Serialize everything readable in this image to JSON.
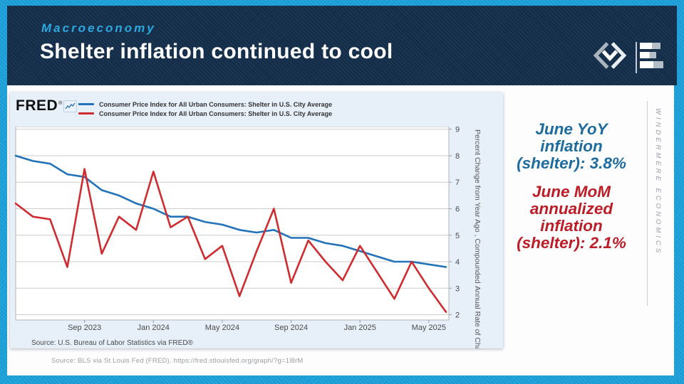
{
  "slide": {
    "eyebrow": "Macroeconomy",
    "title": "Shelter inflation continued to cool",
    "footer_source": "Source: BLS via St Louis Fed (FRED). https://fred.stlouisfed.org/graph/?g=1l8rM",
    "brand_vertical": "WINDERMERE ECONOMICS"
  },
  "colors": {
    "frame_blue": "#1ba4dd",
    "header_navy": "#16314f",
    "eyebrow_blue": "#2da7dd",
    "yoy_line_blue": "#2172b8",
    "mom_line_red": "#d02b2e",
    "callout_blue": "#1e6b9e",
    "callout_red": "#bd1c26"
  },
  "fred_chart": {
    "logo": "FRED",
    "logo_reg": "®",
    "legend": [
      {
        "label": "Consumer Price Index for All Urban Consumers: Shelter in U.S. City Average",
        "color": "#2172b8"
      },
      {
        "label": "Consumer Price Index for All Urban Consumers: Shelter in U.S. City Average",
        "color": "#d02b2e"
      }
    ],
    "y_axis_title_line1": "Percent Change from Year Ago , Compounded",
    "y_axis_title_line2": "Annual Rate of Change",
    "inner_source": "Source: U.S. Bureau of Labor Statistics via FRED®"
  },
  "callouts": {
    "yoy": {
      "lines": [
        "June YoY",
        "inflation",
        "(shelter): 3.8%"
      ],
      "color": "#1e6b9e"
    },
    "mom": {
      "lines": [
        "June MoM",
        "annualized",
        "inflation",
        "(shelter): 2.1%"
      ],
      "color": "#bd1c26"
    }
  },
  "chart_data": {
    "type": "line",
    "title": "Consumer Price Index for All Urban Consumers: Shelter in U.S. City Average",
    "ylabel": "Percent Change from Year Ago , Compounded Annual Rate of Change",
    "x": [
      "May 2023",
      "Jun 2023",
      "Jul 2023",
      "Aug 2023",
      "Sep 2023",
      "Oct 2023",
      "Nov 2023",
      "Dec 2023",
      "Jan 2024",
      "Feb 2024",
      "Mar 2024",
      "Apr 2024",
      "May 2024",
      "Jun 2024",
      "Jul 2024",
      "Aug 2024",
      "Sep 2024",
      "Oct 2024",
      "Nov 2024",
      "Dec 2024",
      "Jan 2025",
      "Feb 2025",
      "Mar 2025",
      "Apr 2025",
      "May 2025",
      "Jun 2025"
    ],
    "series": [
      {
        "name": "Shelter CPI, Percent Change from Year Ago",
        "color": "#2172b8",
        "values": [
          8.0,
          7.8,
          7.7,
          7.3,
          7.2,
          6.7,
          6.5,
          6.2,
          6.0,
          5.7,
          5.7,
          5.5,
          5.4,
          5.2,
          5.1,
          5.2,
          4.9,
          4.9,
          4.7,
          4.6,
          4.4,
          4.2,
          4.0,
          4.0,
          3.9,
          3.8
        ]
      },
      {
        "name": "Shelter CPI, Compounded Annual Rate of Change (MoM annualized)",
        "color": "#d02b2e",
        "values": [
          6.2,
          5.7,
          5.6,
          3.8,
          7.5,
          4.3,
          5.7,
          5.2,
          7.4,
          5.3,
          5.7,
          4.1,
          4.6,
          2.7,
          4.4,
          6.0,
          3.2,
          4.8,
          4.0,
          3.3,
          4.6,
          3.6,
          2.6,
          4.0,
          3.0,
          2.1
        ]
      }
    ],
    "ylim": [
      1.8,
      9.1
    ],
    "yticks": [
      2,
      3,
      4,
      5,
      6,
      7,
      8,
      9
    ],
    "xticks": [
      {
        "index": 4,
        "label": "Sep 2023"
      },
      {
        "index": 8,
        "label": "Jan 2024"
      },
      {
        "index": 12,
        "label": "May 2024"
      },
      {
        "index": 16,
        "label": "Sep 2024"
      },
      {
        "index": 20,
        "label": "Jan 2025"
      },
      {
        "index": 24,
        "label": "May 2025"
      }
    ],
    "grid": "horizontal",
    "legend_position": "top-left"
  }
}
